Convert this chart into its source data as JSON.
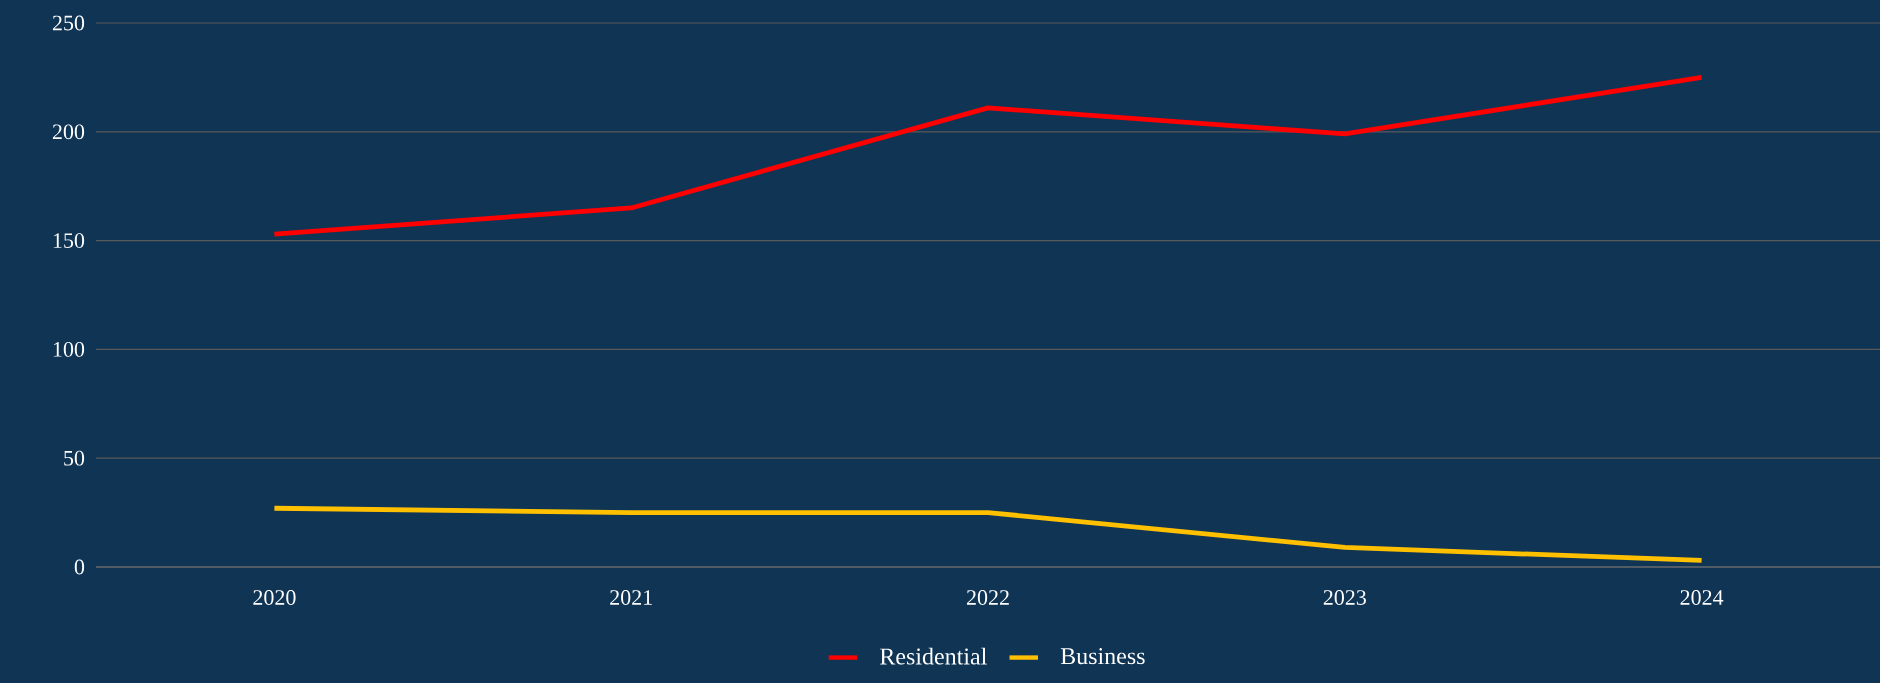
{
  "chart_data": {
    "type": "line",
    "categories": [
      "2020",
      "2021",
      "2022",
      "2023",
      "2024"
    ],
    "series": [
      {
        "name": "Residential",
        "color": "#ff0000",
        "values": [
          153,
          165,
          211,
          199,
          225
        ]
      },
      {
        "name": "Business",
        "color": "#ffc000",
        "values": [
          27,
          25,
          25,
          9,
          3
        ]
      }
    ],
    "ylim": [
      0,
      250
    ],
    "yticks": [
      0,
      50,
      100,
      150,
      200,
      250
    ],
    "grid": "y",
    "legend": "bottom",
    "marker": "none",
    "line_style": "solid"
  }
}
